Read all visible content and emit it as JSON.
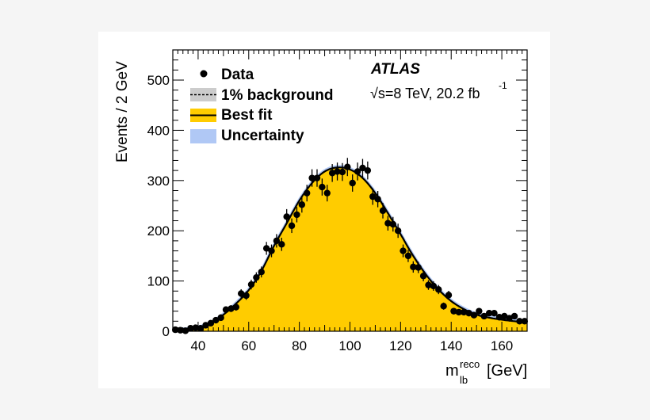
{
  "chart_data": {
    "type": "scatter",
    "xlabel": "m",
    "xlabel_sub": "lb",
    "xlabel_sup": "reco",
    "xlabel_unit": "[GeV]",
    "ylabel": "Events / 2 GeV",
    "xlim": [
      30,
      170
    ],
    "ylim": [
      0,
      560
    ],
    "xticks": [
      40,
      60,
      80,
      100,
      120,
      140,
      160
    ],
    "yticks": [
      0,
      100,
      200,
      300,
      400,
      500
    ],
    "experiment": "ATLAS",
    "energy_label": "√s=8 TeV, 20.2 fb",
    "energy_label_sup": "-1",
    "legend_position": "top-left",
    "legend": [
      {
        "label": "Data",
        "style": "marker"
      },
      {
        "label": "1% background",
        "style": "dashed-grey-box"
      },
      {
        "label": "Best fit",
        "style": "line-yellow-box"
      },
      {
        "label": "Uncertainty",
        "style": "blue-box"
      }
    ],
    "colors": {
      "fit_fill": "#ffcc00",
      "background_fill": "#cccccc",
      "uncertainty": "#b0c8f5",
      "data": "#000000"
    },
    "data": {
      "x": [
        31,
        33,
        35,
        37,
        39,
        41,
        43,
        45,
        47,
        49,
        51,
        53,
        55,
        57,
        59,
        61,
        63,
        65,
        67,
        69,
        71,
        73,
        75,
        77,
        79,
        81,
        83,
        85,
        87,
        89,
        91,
        93,
        95,
        97,
        99,
        101,
        103,
        105,
        107,
        109,
        111,
        113,
        115,
        117,
        119,
        121,
        123,
        125,
        127,
        129,
        131,
        133,
        135,
        137,
        139,
        141,
        143,
        145,
        147,
        149,
        151,
        153,
        155,
        157,
        159,
        161,
        163,
        165,
        167,
        169
      ],
      "y": [
        3,
        2,
        1,
        6,
        7,
        6,
        12,
        16,
        22,
        27,
        43,
        45,
        48,
        75,
        71,
        93,
        107,
        118,
        165,
        160,
        180,
        173,
        228,
        210,
        232,
        252,
        275,
        305,
        305,
        287,
        275,
        315,
        318,
        317,
        327,
        295,
        318,
        325,
        320,
        268,
        263,
        240,
        215,
        213,
        200,
        160,
        150,
        128,
        127,
        110,
        92,
        90,
        83,
        50,
        72,
        40,
        38,
        38,
        36,
        32,
        40,
        30,
        36,
        36,
        28,
        30,
        26,
        30,
        20,
        20
      ]
    },
    "fit": {
      "x": [
        30,
        35,
        40,
        45,
        50,
        55,
        60,
        65,
        70,
        75,
        80,
        85,
        90,
        95,
        100,
        105,
        110,
        115,
        120,
        125,
        130,
        135,
        140,
        145,
        150,
        155,
        160,
        165,
        170
      ],
      "y": [
        2,
        3,
        7,
        15,
        33,
        55,
        82,
        120,
        170,
        215,
        260,
        295,
        318,
        326,
        322,
        305,
        275,
        235,
        193,
        150,
        113,
        83,
        60,
        44,
        33,
        27,
        23,
        20,
        18
      ]
    }
  }
}
